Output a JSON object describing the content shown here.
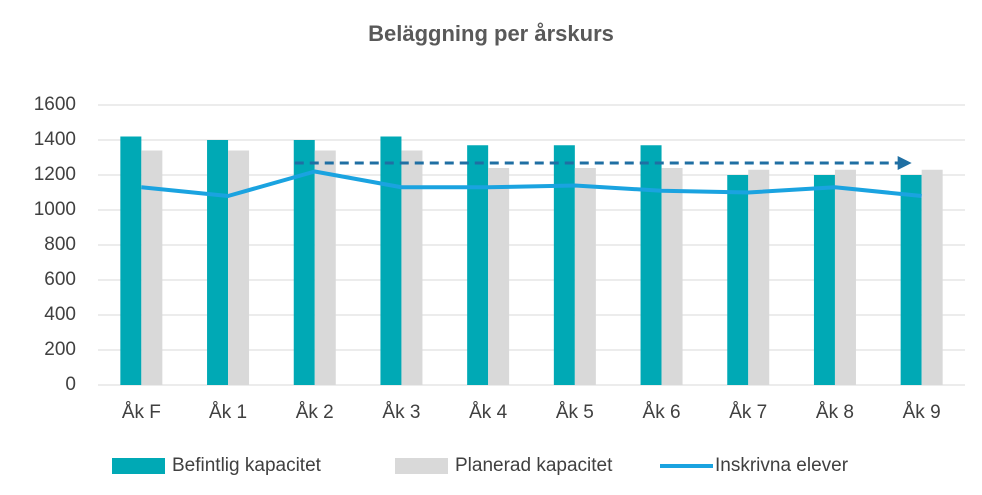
{
  "chart_data": {
    "type": "bar_line",
    "title": "Beläggning per årskurs",
    "categories": [
      "Åk F",
      "Åk 1",
      "Åk 2",
      "Åk 3",
      "Åk 4",
      "Åk 5",
      "Åk 6",
      "Åk 7",
      "Åk 8",
      "Åk 9"
    ],
    "series": [
      {
        "name": "Befintlig kapacitet",
        "color": "#00a9b5",
        "kind": "bar",
        "values": [
          1420,
          1400,
          1400,
          1420,
          1370,
          1370,
          1370,
          1200,
          1200,
          1200
        ]
      },
      {
        "name": "Planerad kapacitet",
        "color": "#d9d9d9",
        "kind": "bar",
        "values": [
          1340,
          1340,
          1340,
          1340,
          1240,
          1240,
          1240,
          1230,
          1230,
          1230
        ]
      },
      {
        "name": "Inskrivna elever",
        "color": "#1aa3e0",
        "kind": "line",
        "values": [
          1130,
          1080,
          1220,
          1130,
          1130,
          1140,
          1110,
          1100,
          1130,
          1080
        ]
      }
    ],
    "ylim": [
      0,
      1600
    ],
    "yticks": [
      0,
      200,
      400,
      600,
      800,
      1000,
      1200,
      1400,
      1600
    ],
    "grid": true,
    "legend": "bottom"
  }
}
